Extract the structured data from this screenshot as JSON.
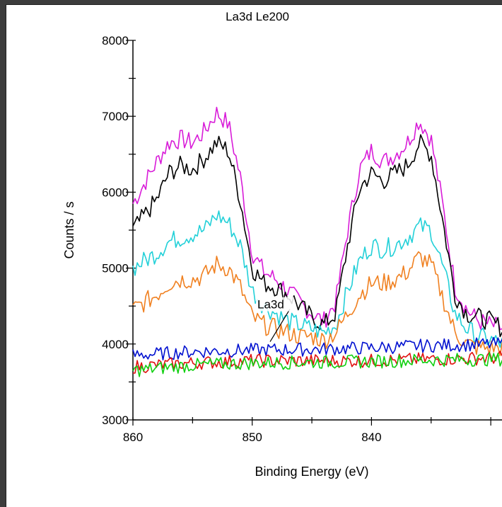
{
  "chart_data": {
    "type": "line",
    "title": "La3d Le200",
    "xlabel": "Binding Energy (eV)",
    "ylabel": "Counts / s",
    "xlim": [
      860,
      829
    ],
    "ylim": [
      3000,
      8000
    ],
    "x_reversed": true,
    "xticks": [
      860,
      850,
      840
    ],
    "yticks": [
      3000,
      4000,
      5000,
      6000,
      7000,
      8000
    ],
    "grid": false,
    "annotations": [
      {
        "text": "La3d",
        "x": 848.5,
        "y": 4030
      }
    ],
    "colors": {
      "magenta": "#d81cd8",
      "black": "#000000",
      "cyan": "#22d0d8",
      "orange": "#f08020",
      "blue": "#0010d0",
      "red": "#e01010",
      "green": "#10d010"
    },
    "series": [
      {
        "color": "magenta",
        "x": [
          860,
          858,
          857,
          856,
          855,
          854,
          853,
          852,
          851,
          850,
          849,
          848,
          847,
          846,
          845,
          844,
          843,
          842,
          841,
          840,
          839,
          838,
          837,
          836,
          835,
          834,
          833,
          832,
          831,
          830,
          829
        ],
        "values": [
          5850,
          6400,
          6650,
          6700,
          6650,
          6800,
          7050,
          6900,
          6200,
          5200,
          4950,
          4850,
          4700,
          4550,
          4400,
          4300,
          4550,
          5500,
          6300,
          6550,
          6400,
          6500,
          6650,
          6950,
          6700,
          5800,
          4750,
          4450,
          4300,
          4250,
          4200
        ]
      },
      {
        "color": "black",
        "x": [
          860,
          858,
          857,
          856,
          855,
          854,
          853,
          852,
          851,
          850,
          849,
          848,
          847,
          846,
          845,
          844,
          843,
          842,
          841,
          840,
          839,
          838,
          837,
          836,
          835,
          834,
          833,
          832,
          831,
          830,
          829
        ],
        "values": [
          5500,
          5900,
          6250,
          6350,
          6300,
          6450,
          6650,
          6550,
          5900,
          5000,
          4800,
          4750,
          4650,
          4500,
          4350,
          4250,
          4400,
          5300,
          6050,
          6250,
          6150,
          6250,
          6350,
          6650,
          6500,
          5600,
          4650,
          4400,
          4350,
          4300,
          4200
        ]
      },
      {
        "color": "cyan",
        "x": [
          860,
          858,
          857,
          856,
          855,
          854,
          853,
          852,
          851,
          850,
          849,
          848,
          847,
          846,
          845,
          844,
          843,
          842,
          841,
          840,
          839,
          838,
          837,
          836,
          835,
          834,
          833,
          832,
          831,
          830,
          829
        ],
        "values": [
          5000,
          5200,
          5350,
          5400,
          5450,
          5500,
          5700,
          5600,
          5300,
          4700,
          4500,
          4400,
          4300,
          4250,
          4200,
          4150,
          4250,
          4700,
          5100,
          5300,
          5250,
          5300,
          5400,
          5550,
          5500,
          5000,
          4400,
          4200,
          4100,
          4050,
          4000
        ]
      },
      {
        "color": "orange",
        "x": [
          860,
          858,
          857,
          856,
          855,
          854,
          853,
          852,
          851,
          850,
          849,
          848,
          847,
          846,
          845,
          844,
          843,
          842,
          841,
          840,
          839,
          838,
          837,
          836,
          835,
          834,
          833,
          832,
          831,
          830,
          829
        ],
        "values": [
          4450,
          4650,
          4800,
          4850,
          4850,
          4900,
          5050,
          5000,
          4750,
          4350,
          4250,
          4200,
          4150,
          4100,
          4100,
          4050,
          4150,
          4400,
          4650,
          4800,
          4800,
          4850,
          4950,
          5150,
          5050,
          4600,
          4150,
          4000,
          3950,
          3950,
          3950
        ]
      },
      {
        "color": "blue",
        "x": [
          860,
          855,
          850,
          845,
          840,
          835,
          829
        ],
        "values": [
          3850,
          3900,
          3920,
          3930,
          3950,
          3980,
          4000
        ]
      },
      {
        "color": "red",
        "x": [
          860,
          855,
          850,
          845,
          840,
          835,
          829
        ],
        "values": [
          3700,
          3750,
          3780,
          3780,
          3780,
          3800,
          3820
        ]
      },
      {
        "color": "green",
        "x": [
          860,
          855,
          850,
          845,
          840,
          835,
          829
        ],
        "values": [
          3650,
          3720,
          3750,
          3760,
          3770,
          3790,
          3800
        ]
      }
    ]
  }
}
